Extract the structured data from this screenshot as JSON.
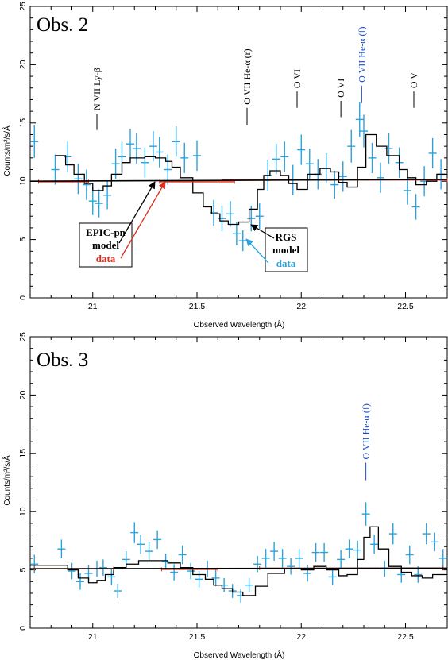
{
  "chart_data": [
    {
      "type": "line",
      "title": "Obs. 2",
      "xlabel": "Observed Wavelength (Å)",
      "ylabel": "Counts/m²/s/Å",
      "xlim": [
        20.7,
        22.7
      ],
      "ylim": [
        0,
        25
      ],
      "xticks": [
        21,
        21.5,
        22,
        22.5
      ],
      "xtick_labels": [
        "21",
        "21.5",
        "22",
        "22.5"
      ],
      "yticks": [
        0,
        5,
        10,
        15,
        20,
        25
      ],
      "ytick_labels": [
        "0",
        "5",
        "10",
        "15",
        "20",
        "25"
      ],
      "colors": {
        "rgs_data": "#29a3dd",
        "epic_data": "#dd2c1a",
        "model": "#000000",
        "label_blue": "#1a4fc4"
      },
      "line_labels": [
        {
          "text": "N VII Ly-β",
          "x": 21.02,
          "tick_y": [
            14.4,
            15.8
          ],
          "color": "#000000"
        },
        {
          "text": "O VII He-α (r)",
          "x": 21.74,
          "tick_y": [
            14.8,
            16.3
          ],
          "color": "#000000"
        },
        {
          "text": "O VI",
          "x": 21.98,
          "tick_y": [
            16.3,
            17.7
          ],
          "color": "#000000"
        },
        {
          "text": "O VI",
          "x": 22.19,
          "tick_y": [
            15.5,
            16.9
          ],
          "color": "#000000"
        },
        {
          "text": "O VII He-α (f)",
          "x": 22.29,
          "tick_y": [
            16.7,
            18.2
          ],
          "color": "#1a4fc4"
        },
        {
          "text": "O V",
          "x": 22.54,
          "tick_y": [
            16.3,
            17.7
          ],
          "color": "#000000"
        }
      ],
      "annotations": {
        "epic_box": {
          "lines": [
            "EPIC-pn",
            "model",
            "data"
          ],
          "colors": [
            "#000000",
            "#000000",
            "#dd2c1a"
          ],
          "anchor": [
            21.04,
            5.5
          ]
        },
        "rgs_box": {
          "lines": [
            "RGS",
            "model",
            "data"
          ],
          "colors": [
            "#000000",
            "#000000",
            "#29a3dd"
          ],
          "anchor": [
            21.8,
            4.8
          ]
        }
      },
      "series": [
        {
          "name": "RGS data",
          "style": "errorbars",
          "x": [
            20.72,
            20.82,
            20.88,
            20.93,
            20.97,
            21.0,
            21.03,
            21.07,
            21.11,
            21.14,
            21.18,
            21.21,
            21.25,
            21.29,
            21.32,
            21.36,
            21.4,
            21.44,
            21.5,
            21.58,
            21.62,
            21.66,
            21.69,
            21.72,
            21.76,
            21.8,
            21.84,
            21.88,
            21.92,
            21.96,
            22.0,
            22.04,
            22.08,
            22.12,
            22.16,
            22.2,
            22.24,
            22.28,
            22.3,
            22.34,
            22.38,
            22.42,
            22.47,
            22.51,
            22.55,
            22.59,
            22.63,
            22.67
          ],
          "y": [
            13.4,
            11.0,
            12.1,
            10.2,
            9.7,
            8.3,
            8.1,
            8.8,
            11.5,
            12.1,
            13.2,
            12.8,
            11.6,
            13.0,
            12.5,
            11.0,
            13.4,
            12.0,
            12.2,
            7.3,
            6.8,
            7.2,
            5.5,
            4.9,
            6.8,
            7.0,
            10.5,
            11.9,
            12.1,
            10.1,
            12.7,
            11.5,
            10.6,
            11.1,
            9.7,
            10.4,
            13.0,
            15.3,
            14.3,
            12.0,
            10.3,
            12.8,
            11.6,
            9.2,
            7.8,
            10.0,
            12.4,
            10.6
          ],
          "yerr": [
            1.4,
            1.3,
            1.3,
            1.3,
            1.3,
            1.2,
            1.2,
            1.2,
            1.3,
            1.3,
            1.3,
            1.3,
            1.3,
            1.3,
            1.3,
            1.3,
            1.3,
            1.3,
            1.3,
            1.1,
            1.1,
            1.1,
            1.0,
            0.9,
            1.1,
            1.1,
            1.3,
            1.3,
            1.3,
            1.3,
            1.3,
            1.3,
            1.3,
            1.3,
            1.2,
            1.3,
            1.4,
            1.5,
            1.4,
            1.3,
            1.3,
            1.3,
            1.3,
            1.2,
            1.1,
            1.3,
            1.3,
            1.3
          ]
        },
        {
          "name": "RGS model",
          "style": "steps",
          "x": [
            20.82,
            20.87,
            20.91,
            20.96,
            21.0,
            21.05,
            21.09,
            21.14,
            21.18,
            21.25,
            21.3,
            21.35,
            21.38,
            21.42,
            21.48,
            21.53,
            21.57,
            21.61,
            21.65,
            21.7,
            21.75,
            21.79,
            21.82,
            21.85,
            21.9,
            21.94,
            21.98,
            22.03,
            22.09,
            22.14,
            22.18,
            22.22,
            22.27,
            22.31,
            22.36,
            22.41,
            22.47,
            22.51,
            22.55,
            22.6,
            22.65,
            22.7
          ],
          "y": [
            12.2,
            11.4,
            10.6,
            9.8,
            9.2,
            9.6,
            10.6,
            11.6,
            12.0,
            12.1,
            12.0,
            11.7,
            11.2,
            10.3,
            9.0,
            7.8,
            7.2,
            6.6,
            6.3,
            6.5,
            7.6,
            9.3,
            10.5,
            10.9,
            10.5,
            9.8,
            9.3,
            10.6,
            11.1,
            10.8,
            9.9,
            9.5,
            11.2,
            14.0,
            13.0,
            12.2,
            11.0,
            10.3,
            9.7,
            10.0,
            10.6,
            11.0
          ]
        },
        {
          "name": "EPIC-pn data",
          "style": "horizontal-bars",
          "segments": [
            [
              20.74,
              20.98,
              9.95
            ],
            [
              21.32,
              21.68,
              9.95
            ],
            [
              21.62,
              22.7,
              10.1
            ]
          ]
        },
        {
          "name": "EPIC-pn model",
          "style": "line",
          "x": [
            20.7,
            22.7
          ],
          "y": [
            10.0,
            10.15
          ]
        }
      ]
    },
    {
      "type": "line",
      "title": "Obs. 3",
      "xlabel": "Observed Wavelength (Å)",
      "ylabel": "Counts/m²/s/Å",
      "xlim": [
        20.7,
        22.7
      ],
      "ylim": [
        0,
        25
      ],
      "xticks": [
        21,
        21.5,
        22,
        22.5
      ],
      "xtick_labels": [
        "21",
        "21.5",
        "22",
        "22.5"
      ],
      "yticks": [
        0,
        5,
        10,
        15,
        20,
        25
      ],
      "ytick_labels": [
        "0",
        "5",
        "10",
        "15",
        "20",
        "25"
      ],
      "colors": {
        "rgs_data": "#29a3dd",
        "epic_data": "#dd2c1a",
        "model": "#000000",
        "label_blue": "#1a4fc4"
      },
      "line_labels": [
        {
          "text": "O VII He-α (f)",
          "x": 22.31,
          "tick_y": [
            12.7,
            14.2
          ],
          "color": "#1a4fc4"
        }
      ],
      "series": [
        {
          "name": "RGS data",
          "style": "errorbars",
          "x": [
            20.72,
            20.85,
            20.9,
            20.94,
            20.98,
            21.02,
            21.05,
            21.09,
            21.12,
            21.16,
            21.2,
            21.23,
            21.27,
            21.31,
            21.35,
            21.39,
            21.43,
            21.47,
            21.51,
            21.55,
            21.59,
            21.63,
            21.67,
            21.71,
            21.75,
            21.79,
            21.83,
            21.87,
            21.91,
            21.95,
            21.99,
            22.03,
            22.07,
            22.11,
            22.15,
            22.19,
            22.23,
            22.27,
            22.31,
            22.35,
            22.4,
            22.44,
            22.48,
            22.52,
            22.56,
            22.6,
            22.64,
            22.68
          ],
          "y": [
            5.5,
            6.8,
            4.9,
            4.0,
            4.7,
            5.1,
            5.2,
            4.4,
            3.2,
            5.9,
            8.2,
            7.2,
            6.6,
            7.6,
            5.7,
            4.8,
            6.3,
            4.9,
            4.2,
            5.1,
            4.3,
            3.7,
            3.2,
            2.8,
            3.7,
            5.5,
            6.0,
            6.6,
            6.0,
            5.3,
            6.0,
            4.7,
            6.5,
            6.5,
            4.4,
            5.9,
            6.8,
            6.7,
            9.8,
            7.2,
            5.1,
            8.1,
            4.6,
            6.3,
            4.6,
            8.1,
            7.4,
            6.0
          ],
          "yerr": [
            0.8,
            0.8,
            0.7,
            0.7,
            0.7,
            0.7,
            0.7,
            0.7,
            0.6,
            0.7,
            0.9,
            0.8,
            0.8,
            0.8,
            0.7,
            0.7,
            0.8,
            0.7,
            0.7,
            0.7,
            0.7,
            0.6,
            0.6,
            0.6,
            0.6,
            0.7,
            0.8,
            0.8,
            0.8,
            0.7,
            0.8,
            0.7,
            0.8,
            0.8,
            0.7,
            0.8,
            0.8,
            0.8,
            1.0,
            0.8,
            0.7,
            0.9,
            0.7,
            0.8,
            0.7,
            0.9,
            0.8,
            0.8
          ]
        },
        {
          "name": "RGS model",
          "style": "steps",
          "x": [
            20.7,
            20.88,
            20.93,
            20.98,
            21.02,
            21.06,
            21.1,
            21.16,
            21.22,
            21.3,
            21.36,
            21.42,
            21.48,
            21.54,
            21.58,
            21.62,
            21.67,
            21.72,
            21.78,
            21.84,
            21.92,
            22.0,
            22.06,
            22.12,
            22.18,
            22.22,
            22.27,
            22.3,
            22.33,
            22.37,
            22.42,
            22.48,
            22.53,
            22.58,
            22.63,
            22.7
          ],
          "y": [
            5.4,
            5.0,
            4.3,
            3.9,
            4.1,
            4.6,
            5.2,
            5.5,
            5.8,
            5.8,
            5.6,
            5.2,
            4.6,
            4.2,
            3.7,
            3.4,
            3.1,
            2.8,
            3.6,
            4.7,
            5.1,
            5.0,
            5.3,
            5.0,
            4.5,
            4.6,
            5.9,
            7.8,
            8.7,
            6.8,
            5.3,
            4.8,
            4.5,
            4.3,
            4.6,
            5.0
          ]
        },
        {
          "name": "EPIC-pn data",
          "style": "horizontal-bars",
          "segments": [
            [
              20.72,
              21.1,
              5.1
            ],
            [
              21.33,
              21.6,
              5.05
            ],
            [
              21.8,
              22.68,
              5.15
            ]
          ]
        },
        {
          "name": "EPIC-pn model",
          "style": "line",
          "x": [
            20.7,
            22.7
          ],
          "y": [
            5.1,
            5.15
          ]
        }
      ]
    }
  ]
}
